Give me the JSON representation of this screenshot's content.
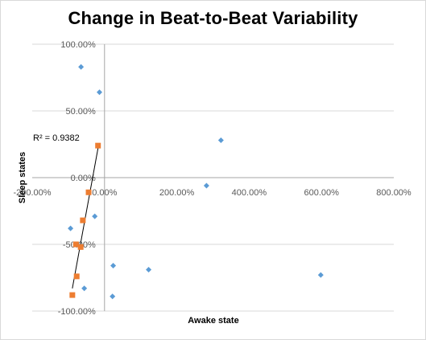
{
  "chart_data": {
    "type": "scatter",
    "title": "Change in Beat-to-Beat Variability",
    "xlabel": "Awake state",
    "ylabel": "Sleep states",
    "xlim": [
      -200,
      800
    ],
    "ylim": [
      -100,
      100
    ],
    "x_ticks": [
      -200,
      0,
      200,
      400,
      600,
      800
    ],
    "y_ticks": [
      -100,
      -50,
      0,
      50,
      100
    ],
    "x_tick_labels": [
      "-200.00%",
      "0.00%",
      "200.00%",
      "400.00%",
      "600.00%",
      "800.00%"
    ],
    "y_tick_labels": [
      "-100.00%",
      "-50.00%",
      "0.00%",
      "50.00%",
      "100.00%"
    ],
    "grid": "horizontal",
    "series": [
      {
        "marker": "diamond",
        "color": "#5b9bd5",
        "points": [
          {
            "x": -65,
            "y": 83
          },
          {
            "x": -14,
            "y": 64
          },
          {
            "x": 322,
            "y": 28
          },
          {
            "x": 282,
            "y": -6
          },
          {
            "x": -27,
            "y": -29
          },
          {
            "x": -94,
            "y": -38
          },
          {
            "x": 24,
            "y": -66
          },
          {
            "x": 122,
            "y": -69
          },
          {
            "x": 598,
            "y": -73
          },
          {
            "x": -56,
            "y": -83
          },
          {
            "x": 22,
            "y": -89
          }
        ]
      },
      {
        "marker": "square",
        "color": "#ed7d31",
        "points": [
          {
            "x": -18,
            "y": 24
          },
          {
            "x": -44,
            "y": -11
          },
          {
            "x": -60,
            "y": -32
          },
          {
            "x": -79,
            "y": -50
          },
          {
            "x": -66,
            "y": -52
          },
          {
            "x": -77,
            "y": -74
          },
          {
            "x": -89,
            "y": -88
          }
        ]
      }
    ],
    "trendline": {
      "x": [
        -89,
        -16
      ],
      "y": [
        -83,
        25
      ],
      "color": "#000000",
      "r2_label": "R² = 0.9382"
    }
  }
}
